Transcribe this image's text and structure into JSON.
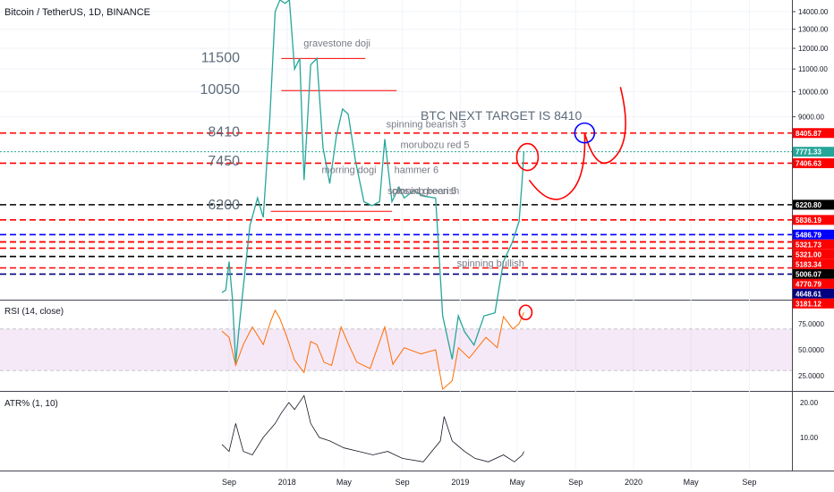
{
  "header": {
    "symbol_title": "Bitcoin / TetherUS, 1D, BINANCE"
  },
  "annotations": {
    "target_text": "BTC NEXT TARGET IS 8410",
    "level_labels": [
      {
        "text": "11500",
        "price": 11500
      },
      {
        "text": "10050",
        "price": 10050
      },
      {
        "text": "8410",
        "price": 8410
      },
      {
        "text": "7450",
        "price": 7450
      },
      {
        "text": "6200",
        "price": 6200
      }
    ],
    "candle_notes": [
      {
        "text": "gravestone doji",
        "date": "2018-02-05",
        "price": 12100
      },
      {
        "text": "spinning bearish 3",
        "date": "2018-07-29",
        "price": 8600
      },
      {
        "text": "morubozu red 5",
        "date": "2018-08-28",
        "price": 7900
      },
      {
        "text": "morring dogi",
        "date": "2018-03-15",
        "price": 7100
      },
      {
        "text": "hammer 6",
        "date": "2018-08-15",
        "price": 7100
      },
      {
        "text": "spinning bearish",
        "date": "2018-08-01",
        "price": 6500
      },
      {
        "text": "closed green 5",
        "date": "2018-08-10",
        "price": 6500
      },
      {
        "text": "spinning bullish",
        "date": "2018-12-25",
        "price": 4800
      }
    ]
  },
  "chart_data": {
    "type": "line",
    "price_pane": {
      "y_ticks": [
        14000,
        13000,
        12000,
        11000,
        10000,
        9000
      ],
      "y_tick_labels": [
        "14000.00",
        "13000.00",
        "12000.00",
        "11000.00",
        "10000.00",
        "9000.00"
      ],
      "ylim": [
        3000,
        15000
      ],
      "scale": "log",
      "close_series": [
        [
          "2017-08-17",
          4300
        ],
        [
          "2017-08-25",
          4350
        ],
        [
          "2017-09-01",
          4900
        ],
        [
          "2017-09-08",
          4200
        ],
        [
          "2017-09-15",
          3200
        ],
        [
          "2017-09-22",
          3700
        ],
        [
          "2017-10-01",
          4400
        ],
        [
          "2017-10-15",
          5700
        ],
        [
          "2017-10-31",
          6400
        ],
        [
          "2017-11-12",
          5900
        ],
        [
          "2017-11-26",
          9000
        ],
        [
          "2017-12-07",
          14000
        ],
        [
          "2017-12-17",
          19000
        ],
        [
          "2017-12-28",
          14500
        ],
        [
          "2018-01-06",
          17000
        ],
        [
          "2018-01-17",
          11000
        ],
        [
          "2018-01-28",
          11500
        ],
        [
          "2018-02-06",
          6900
        ],
        [
          "2018-02-20",
          11200
        ],
        [
          "2018-03-05",
          11500
        ],
        [
          "2018-03-18",
          7900
        ],
        [
          "2018-04-01",
          6800
        ],
        [
          "2018-04-15",
          8300
        ],
        [
          "2018-04-28",
          9300
        ],
        [
          "2018-05-10",
          9100
        ],
        [
          "2018-05-25",
          7500
        ],
        [
          "2018-06-12",
          6300
        ],
        [
          "2018-06-29",
          6200
        ],
        [
          "2018-07-15",
          6300
        ],
        [
          "2018-07-26",
          8200
        ],
        [
          "2018-08-10",
          6300
        ],
        [
          "2018-08-25",
          6700
        ],
        [
          "2018-09-05",
          6400
        ],
        [
          "2018-09-25",
          6600
        ],
        [
          "2018-10-15",
          6450
        ],
        [
          "2018-11-10",
          6400
        ],
        [
          "2018-11-20",
          4600
        ],
        [
          "2018-11-25",
          3900
        ],
        [
          "2018-12-15",
          3250
        ],
        [
          "2018-12-28",
          3900
        ],
        [
          "2019-01-10",
          3650
        ],
        [
          "2019-01-30",
          3450
        ],
        [
          "2019-02-20",
          3900
        ],
        [
          "2019-03-15",
          3950
        ],
        [
          "2019-04-02",
          4900
        ],
        [
          "2019-04-20",
          5300
        ],
        [
          "2019-05-05",
          5800
        ],
        [
          "2019-05-12",
          7000
        ],
        [
          "2019-05-15",
          7771
        ]
      ],
      "horizontal_lines": [
        {
          "price": 8405.87,
          "label": "8405.87",
          "style": "dashed",
          "color": "#ff0000"
        },
        {
          "price": 7771.33,
          "label": "7771.33",
          "style": "dotted",
          "color": "#26a69a"
        },
        {
          "price": 7406.63,
          "label": "7406.63",
          "style": "dashed",
          "color": "#ff0000"
        },
        {
          "price": 6220.8,
          "label": "6220.80",
          "style": "dashed",
          "color": "#000000"
        },
        {
          "price": 5836.19,
          "label": "5836.19",
          "style": "dashed",
          "color": "#ff0000"
        },
        {
          "price": 5486.79,
          "label": "5486.79",
          "style": "dashed",
          "color": "#0000ff"
        },
        {
          "price": 5321.73,
          "label": "5321.73",
          "style": "dashed",
          "color": "#ff0000"
        },
        {
          "price": 5321.0,
          "label": "5321.00",
          "style": "dashed",
          "color": "#ff0000"
        },
        {
          "price": 5183.34,
          "label": "5183.34",
          "style": "dashed",
          "color": "#ff0000"
        },
        {
          "price": 5006.07,
          "label": "5006.07",
          "style": "dashed",
          "color": "#000000"
        },
        {
          "price": 4770.79,
          "label": "4770.79",
          "style": "dashed",
          "color": "#ff0000"
        },
        {
          "price": 4648.61,
          "label": "4648.61",
          "style": "dashed",
          "color": "#000080"
        },
        {
          "price": 3181.12,
          "label": "3181.12",
          "style": "solid",
          "color": "#ff0000"
        }
      ],
      "drawn_lines": [
        {
          "price": 11500,
          "from": "2017-12-20",
          "to": "2018-06-15"
        },
        {
          "price": 10050,
          "from": "2017-12-20",
          "to": "2018-08-20"
        },
        {
          "price": 6050,
          "from": "2017-11-28",
          "to": "2018-08-10"
        }
      ]
    },
    "rsi_pane": {
      "title": "RSI (14, close)",
      "y_ticks": [
        75,
        50,
        25
      ],
      "y_tick_labels": [
        "75.0000",
        "50.0000",
        "25.0000"
      ],
      "ylim": [
        0,
        100
      ],
      "band": [
        30,
        70
      ],
      "series": [
        [
          "2017-08-17",
          68
        ],
        [
          "2017-09-01",
          62
        ],
        [
          "2017-09-15",
          35
        ],
        [
          "2017-10-01",
          55
        ],
        [
          "2017-10-20",
          72
        ],
        [
          "2017-11-12",
          55
        ],
        [
          "2017-11-28",
          78
        ],
        [
          "2017-12-07",
          88
        ],
        [
          "2017-12-17",
          80
        ],
        [
          "2018-01-01",
          62
        ],
        [
          "2018-01-17",
          40
        ],
        [
          "2018-02-06",
          28
        ],
        [
          "2018-02-20",
          58
        ],
        [
          "2018-03-05",
          55
        ],
        [
          "2018-03-20",
          38
        ],
        [
          "2018-04-05",
          35
        ],
        [
          "2018-04-25",
          72
        ],
        [
          "2018-05-10",
          56
        ],
        [
          "2018-05-28",
          38
        ],
        [
          "2018-06-25",
          32
        ],
        [
          "2018-07-26",
          72
        ],
        [
          "2018-08-12",
          36
        ],
        [
          "2018-09-05",
          52
        ],
        [
          "2018-10-10",
          46
        ],
        [
          "2018-11-10",
          50
        ],
        [
          "2018-11-25",
          12
        ],
        [
          "2018-12-15",
          20
        ],
        [
          "2018-12-28",
          52
        ],
        [
          "2019-01-20",
          42
        ],
        [
          "2019-02-24",
          62
        ],
        [
          "2019-03-20",
          52
        ],
        [
          "2019-04-02",
          82
        ],
        [
          "2019-04-22",
          70
        ],
        [
          "2019-05-05",
          75
        ],
        [
          "2019-05-15",
          86
        ]
      ]
    },
    "atr_pane": {
      "title": "ATR% (1, 10)",
      "y_ticks": [
        20,
        10
      ],
      "y_tick_labels": [
        "20.00",
        "10.00"
      ],
      "ylim": [
        0,
        23
      ],
      "series": [
        [
          "2017-08-17",
          8
        ],
        [
          "2017-09-01",
          6
        ],
        [
          "2017-09-15",
          14
        ],
        [
          "2017-10-01",
          6
        ],
        [
          "2017-10-20",
          5
        ],
        [
          "2017-11-12",
          10
        ],
        [
          "2017-12-07",
          14
        ],
        [
          "2017-12-20",
          17
        ],
        [
          "2018-01-05",
          20
        ],
        [
          "2018-01-17",
          18
        ],
        [
          "2018-02-06",
          22
        ],
        [
          "2018-02-20",
          14
        ],
        [
          "2018-03-10",
          10
        ],
        [
          "2018-04-01",
          9
        ],
        [
          "2018-05-01",
          7
        ],
        [
          "2018-06-01",
          6
        ],
        [
          "2018-07-01",
          5
        ],
        [
          "2018-08-01",
          6
        ],
        [
          "2018-09-01",
          4
        ],
        [
          "2018-10-15",
          3
        ],
        [
          "2018-11-20",
          9
        ],
        [
          "2018-11-28",
          16
        ],
        [
          "2018-12-15",
          9
        ],
        [
          "2019-01-10",
          6
        ],
        [
          "2019-02-01",
          4
        ],
        [
          "2019-03-01",
          3
        ],
        [
          "2019-04-02",
          5
        ],
        [
          "2019-04-25",
          3
        ],
        [
          "2019-05-12",
          5
        ],
        [
          "2019-05-15",
          6
        ]
      ]
    },
    "x_axis": {
      "ticks": [
        "2017-09-01",
        "2018-01-01",
        "2018-05-01",
        "2018-09-01",
        "2019-01-01",
        "2019-05-01",
        "2019-09-01",
        "2020-01-01",
        "2020-05-01",
        "2020-09-01"
      ],
      "tick_labels": [
        "Sep",
        "2018",
        "May",
        "Sep",
        "2019",
        "May",
        "Sep",
        "2020",
        "May",
        "Sep"
      ],
      "xlim": [
        "2017-07-01",
        "2020-10-15"
      ]
    }
  }
}
